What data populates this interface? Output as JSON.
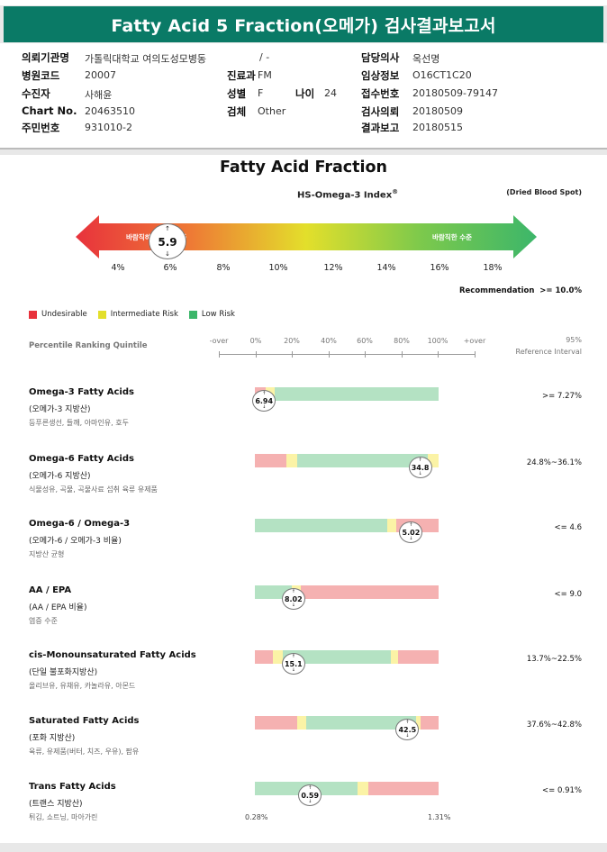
{
  "title": "Fatty Acid 5 Fraction(오메가) 검사결과보고서",
  "info": {
    "institution_label": "의뢰기관명",
    "institution_value": "가톨릭대학교 여의도성모병동",
    "ward_value": "/ -",
    "hospital_code_label": "병원코드",
    "hospital_code_value": "20007",
    "dept_label": "진료과",
    "dept_value": "FM",
    "examinee_label": "수진자",
    "examinee_value": "사해윤",
    "sex_label": "성별",
    "sex_value": "F",
    "age_label": "나이",
    "age_value": "24",
    "chart_label": "Chart No.",
    "chart_value": "20463510",
    "specimen_label": "검체",
    "specimen_value": "Other",
    "resident_label": "주민번호",
    "resident_value": "931010-2",
    "doctor_label": "담당의사",
    "doctor_value": "옥선명",
    "clinical_label": "임상정보",
    "clinical_value": "O16CT1C20",
    "receipt_label": "접수번호",
    "receipt_value": "20180509-79147",
    "request_label": "검사의뢰",
    "request_value": "20180509",
    "result_label": "결과보고",
    "result_value": "20180515"
  },
  "report": {
    "heading": "Fatty Acid Fraction",
    "index_title": "HS-Omega-3 Index",
    "index_reg": "®",
    "specimen_note": "(Dried Blood Spot)",
    "arrow_left_text": "바람직하지 않은 수준",
    "arrow_right_text": "바람직한 수준",
    "index_value": "5.9",
    "index_ticks": [
      "4%",
      "6%",
      "8%",
      "10%",
      "12%",
      "14%",
      "16%",
      "18%"
    ],
    "recommendation_label": "Recommendation",
    "recommendation_value": ">= 10.0%",
    "legend": {
      "undesirable": "Undesirable",
      "intermediate": "Intermediate Risk",
      "low": "Low Risk"
    },
    "colors": {
      "red": "#e8323c",
      "yellow": "#e3df2b",
      "green": "#3cb66a",
      "bar_red": "#f5b1b1",
      "bar_yellow": "#fbf3a6",
      "bar_green": "#b4e2c3",
      "teal": "#0a7a66"
    },
    "percentile_label": "Percentile Ranking Quintile",
    "percentile_scale": [
      "-over",
      "0%",
      "20%",
      "40%",
      "60%",
      "80%",
      "100%",
      "+over"
    ],
    "ref_header_line1": "95%",
    "ref_header_line2": "Reference Interval"
  },
  "rows": [
    {
      "name": "Omega-3 Fatty Acids",
      "sub": "(오메가-3 지방산)",
      "desc": "등푸른생선, 들깨, 아마인유, 호두",
      "value": "6.94",
      "ref": ">= 7.27%",
      "segments": [
        [
          "red",
          6
        ],
        [
          "yellow",
          5
        ],
        [
          "green",
          89
        ]
      ],
      "marker_pct": 5
    },
    {
      "name": "Omega-6 Fatty Acids",
      "sub": "(오메가-6 지방산)",
      "desc": "식물성유, 곡물, 곡물사료 섭취 육류 유제품",
      "value": "34.8",
      "ref": "24.8%~36.1%",
      "segments": [
        [
          "red",
          17
        ],
        [
          "yellow",
          6
        ],
        [
          "green",
          71
        ],
        [
          "yellow",
          6
        ]
      ],
      "marker_pct": 90
    },
    {
      "name": "Omega-6 / Omega-3",
      "sub": "(오메가-6 / 오메가-3 비율)",
      "desc": "지방산 균형",
      "value": "5.02",
      "ref": "<= 4.6",
      "segments": [
        [
          "green",
          72
        ],
        [
          "yellow",
          5
        ],
        [
          "red",
          23
        ]
      ],
      "marker_pct": 85
    },
    {
      "name": "AA / EPA",
      "sub": "(AA / EPA 비율)",
      "desc": "염증 수준",
      "value": "8.02",
      "ref": "<= 9.0",
      "segments": [
        [
          "green",
          20
        ],
        [
          "yellow",
          5
        ],
        [
          "red",
          75
        ]
      ],
      "marker_pct": 21
    },
    {
      "name": "cis-Monounsaturated Fatty Acids",
      "sub": "(단일 불포화지방산)",
      "desc": "올리브유, 유채유, 카놀라유, 아몬드",
      "value": "15.1",
      "ref": "13.7%~22.5%",
      "segments": [
        [
          "red",
          10
        ],
        [
          "yellow",
          5
        ],
        [
          "green",
          59
        ],
        [
          "yellow",
          4
        ],
        [
          "red",
          22
        ]
      ],
      "marker_pct": 21
    },
    {
      "name": "Saturated Fatty Acids",
      "sub": "(포화 지방산)",
      "desc": "육류, 유제품(버터, 치즈, 우유), 팜유",
      "value": "42.5",
      "ref": "37.6%~42.8%",
      "segments": [
        [
          "red",
          23
        ],
        [
          "yellow",
          5
        ],
        [
          "green",
          60
        ],
        [
          "yellow",
          2
        ],
        [
          "red",
          10
        ]
      ],
      "marker_pct": 83
    },
    {
      "name": "Trans Fatty Acids",
      "sub": "(트랜스 지방산)",
      "desc": "튀김, 쇼트닝, 마아가린",
      "value": "0.59",
      "ref": "<= 0.91%",
      "segments": [
        [
          "green",
          56
        ],
        [
          "yellow",
          6
        ],
        [
          "red",
          38
        ]
      ],
      "marker_pct": 30,
      "axis_min": "0.28%",
      "axis_max": "1.31%"
    }
  ]
}
